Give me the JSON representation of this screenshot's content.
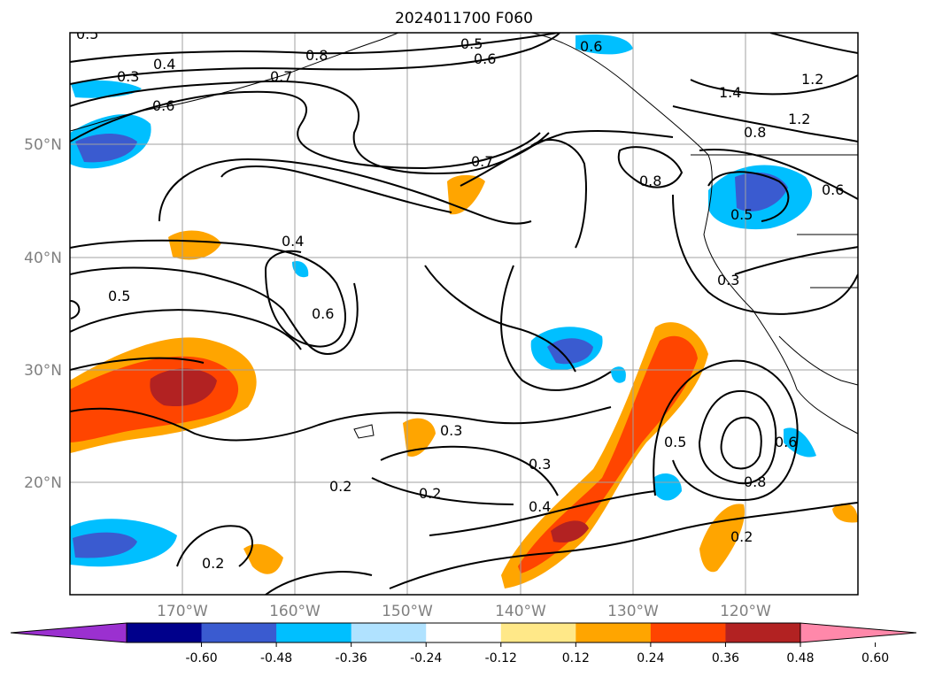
{
  "map": {
    "title": "2024011700 F060",
    "lat_labels": [
      "50°N",
      "40°N",
      "30°N",
      "20°N"
    ],
    "lon_labels": [
      "170°W",
      "160°W",
      "150°W",
      "140°W",
      "130°W",
      "120°W"
    ],
    "contour_labels": [
      "0.5",
      "0.6",
      "0.7",
      "0.8",
      "1.4",
      "1.2",
      "1.2",
      "0.8",
      "0.6",
      "0.5",
      "0.7",
      "0.8",
      "0.4",
      "0.5",
      "0.6",
      "0.3",
      "0.3",
      "0.2",
      "0.3",
      "0.4",
      "0.2",
      "0.5",
      "0.6",
      "0.8",
      "0.2",
      "0.2",
      "0.3",
      "0.4",
      "0.6",
      "0.5",
      "0.6"
    ],
    "colorbar": {
      "tick_labels": [
        "-0.60",
        "-0.48",
        "-0.36",
        "-0.24",
        "-0.12",
        "0.12",
        "0.24",
        "0.36",
        "0.48",
        "0.60"
      ],
      "colors": [
        "#9b30d0",
        "#00008b",
        "#3a5bd0",
        "#00bfff",
        "#b0e2ff",
        "#ffffff",
        "#ffe888",
        "#ffa500",
        "#ff4500",
        "#b22222",
        "#ff88aa"
      ]
    }
  }
}
